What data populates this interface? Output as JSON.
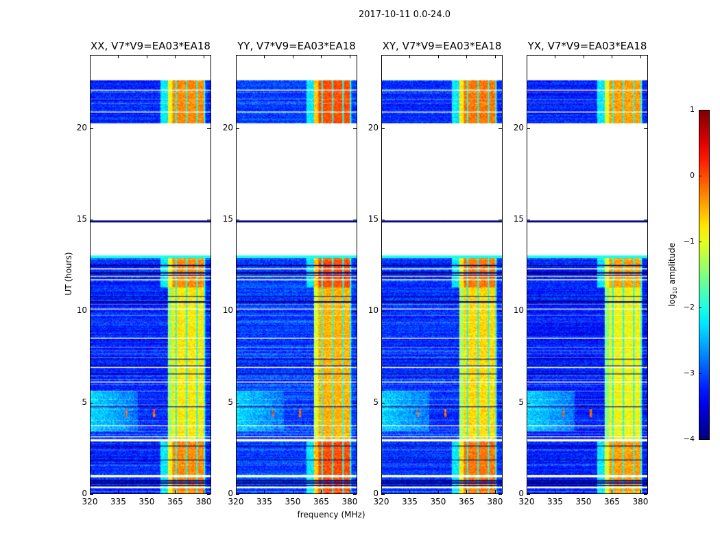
{
  "figure": {
    "suptitle": "2017-10-11 0.0-24.0"
  },
  "chart_data": {
    "type": "heatmap",
    "title": "2017-10-11 0.0-24.0",
    "xlabel": "frequency (MHz)",
    "ylabel": "UT (hours)",
    "xlim": [
      320,
      384
    ],
    "ylim": [
      0,
      24
    ],
    "xticks": [
      "320",
      "335",
      "350",
      "365",
      "380"
    ],
    "xtick_values": [
      320,
      335,
      350,
      365,
      380
    ],
    "yticks": [
      "0",
      "5",
      "10",
      "15",
      "20"
    ],
    "ytick_values": [
      0,
      5,
      10,
      15,
      20
    ],
    "panels": [
      {
        "title": "XX, V7*V9=EA03*EA18",
        "level_offset": 0.0
      },
      {
        "title": "YY, V7*V9=EA03*EA18",
        "level_offset": 0.15
      },
      {
        "title": "XY, V7*V9=EA03*EA18",
        "level_offset": 0.05
      },
      {
        "title": "YX, V7*V9=EA03*EA18",
        "level_offset": -0.05
      }
    ],
    "data_time_ranges_h": [
      [
        0,
        13.0
      ],
      [
        14.85,
        14.95
      ],
      [
        20.3,
        22.6
      ]
    ],
    "flagged_times_h": [
      0.08,
      0.3,
      0.35,
      0.9,
      0.95,
      1.0,
      1.55,
      2.35,
      2.85,
      2.9,
      2.95,
      3.1,
      3.25,
      3.4,
      3.55,
      3.7,
      4.0,
      4.6,
      4.85,
      5.15,
      5.6,
      5.95,
      6.1,
      6.25,
      6.45,
      6.9,
      7.45,
      7.65,
      7.8,
      8.0,
      8.5,
      9.4,
      9.75,
      10.1,
      10.35,
      11.7,
      11.9,
      12.3,
      12.85,
      20.9,
      21.4,
      21.6,
      22.0,
      22.1
    ],
    "dead_times_h": [
      0.45,
      0.55,
      0.6,
      0.7,
      1.85,
      2.6,
      4.75,
      6.55,
      7.0,
      7.35,
      10.5,
      10.8,
      11.95,
      12.1,
      12.5
    ],
    "bright_band_mhz": [
      361,
      381
    ],
    "bright_band_level_log10": -0.8,
    "bright_band_level_edges_log10": -0.3,
    "background_level_log10": -3.2,
    "enhanced_region": {
      "freq_mhz": [
        320,
        345
      ],
      "time_h": [
        3.4,
        5.6
      ],
      "level_log10": -2.3
    },
    "dark_channels_mhz": [
      365.5,
      371,
      376.5,
      380.5
    ],
    "rfi_spikes": [
      {
        "freq_mhz": 339,
        "time_h": [
          4.2,
          4.6
        ]
      },
      {
        "freq_mhz": 353.5,
        "time_h": [
          4.2,
          4.6
        ]
      }
    ],
    "colorbar": {
      "label": "log10 amplitude",
      "label_main": "log",
      "label_sub": "10",
      "label_rest": " amplitude",
      "colormap": "jet",
      "range": [
        -4,
        1
      ],
      "ticks": [
        "1",
        "0",
        "−1",
        "−2",
        "−3",
        "−4"
      ],
      "tick_values": [
        1,
        0,
        -1,
        -2,
        -3,
        -4
      ]
    }
  }
}
